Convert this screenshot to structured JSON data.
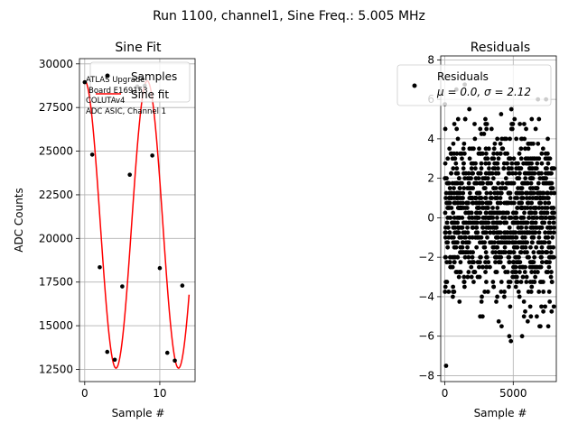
{
  "figure": {
    "suptitle": "Run 1100, channel1, Sine Freq.: 5.005 MHz"
  },
  "chart_data": [
    {
      "type": "scatter",
      "title": "Sine Fit",
      "xlabel": "Sample #",
      "ylabel": "ADC Counts",
      "xlim": [
        -0.7,
        14.7
      ],
      "ylim": [
        11800,
        30300
      ],
      "xticks": [
        0,
        10
      ],
      "yticks": [
        12500,
        15000,
        17500,
        20000,
        22500,
        25000,
        27500,
        30000
      ],
      "ytick_labels": [
        "12500",
        "15000",
        "17500",
        "20000",
        "22500",
        "25000",
        "27500",
        "30000"
      ],
      "grid": true,
      "legend_position": "top",
      "series": [
        {
          "name": "Samples",
          "marker": "dot",
          "color": "#000000",
          "x": [
            0,
            1,
            2,
            3,
            4,
            5,
            6,
            7,
            8,
            9,
            10,
            11,
            12,
            13
          ],
          "y": [
            28950,
            24800,
            18350,
            13500,
            13050,
            17250,
            23650,
            28700,
            28750,
            24750,
            18300,
            13450,
            13000,
            17300
          ]
        },
        {
          "name": "Sine fit",
          "line": true,
          "color": "#ff0000",
          "model": {
            "offset": 20800,
            "amplitude": 8230,
            "period": 8.33,
            "phase_sample": 0.0
          },
          "x_range": [
            0,
            13.9
          ]
        }
      ],
      "annotation": [
        "ATLAS Upgrade",
        "Board E169153",
        "COLUTAv4",
        "ADC ASIC, Channel 1"
      ]
    },
    {
      "type": "scatter",
      "title": "Residuals",
      "xlabel": "Sample #",
      "xlim": [
        -300,
        8150
      ],
      "ylim": [
        -8.3,
        8.2
      ],
      "xticks": [
        0,
        5000
      ],
      "yticks": [
        -8,
        -6,
        -4,
        -2,
        0,
        2,
        4,
        6,
        8
      ],
      "grid": true,
      "legend_position": "top",
      "series": [
        {
          "name": "Residuals",
          "marker": "dot",
          "color": "#000000",
          "x_range": [
            0,
            8000
          ],
          "count": 8000,
          "mu": 0.0,
          "sigma": 2.12
        }
      ],
      "legend_stat_label": "μ = 0.0, σ = 2.12"
    }
  ]
}
